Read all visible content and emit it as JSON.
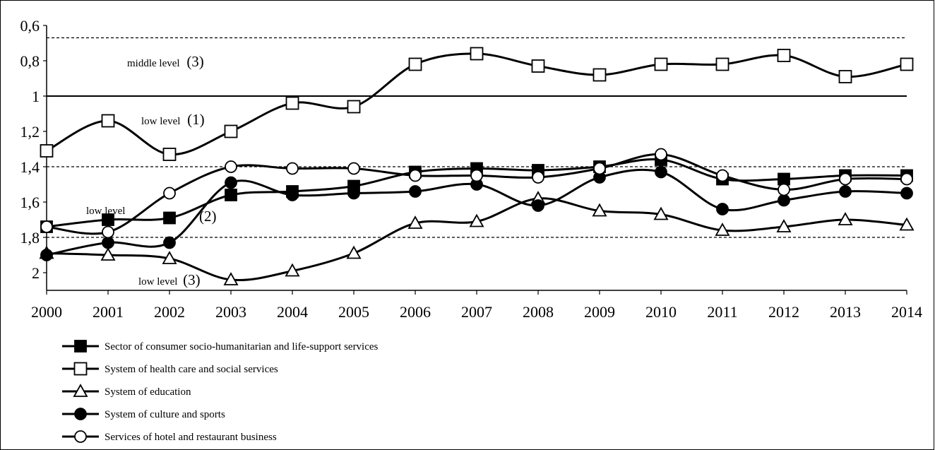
{
  "chart_data": {
    "type": "line",
    "title": "",
    "xlabel": "",
    "ylabel": "",
    "y_reversed": true,
    "ylim": [
      0.6,
      2.1
    ],
    "grid": false,
    "legend_position": "bottom-left",
    "x": [
      "2000",
      "2001",
      "2002",
      "2003",
      "2004",
      "2005",
      "2006",
      "2007",
      "2008",
      "2009",
      "2010",
      "2011",
      "2012",
      "2013",
      "2014"
    ],
    "y_ticks": [
      "0,6",
      "0,8",
      "1",
      "1,2",
      "1,4",
      "1,6",
      "1,8",
      "2"
    ],
    "y_tick_values": [
      0.6,
      0.8,
      1.0,
      1.2,
      1.4,
      1.6,
      1.8,
      2.0
    ],
    "reference_lines": [
      {
        "value": 0.67,
        "style": "dashed"
      },
      {
        "value": 1.0,
        "style": "solid"
      },
      {
        "value": 1.4,
        "style": "dashed"
      },
      {
        "value": 1.8,
        "style": "dashed"
      }
    ],
    "series": [
      {
        "name": "Sector of consumer socio-humanitarian and life-support services",
        "marker": "filled-square",
        "values": [
          1.74,
          1.7,
          1.69,
          1.56,
          1.54,
          1.51,
          1.43,
          1.41,
          1.42,
          1.4,
          1.36,
          1.47,
          1.47,
          1.45,
          1.45
        ]
      },
      {
        "name": "System of health care and social services",
        "marker": "open-square",
        "values": [
          1.31,
          1.14,
          1.33,
          1.2,
          1.04,
          1.06,
          0.82,
          0.76,
          0.83,
          0.88,
          0.82,
          0.82,
          0.77,
          0.89,
          0.82
        ]
      },
      {
        "name": "System of education",
        "marker": "open-triangle",
        "values": [
          1.89,
          1.9,
          1.92,
          2.04,
          1.99,
          1.89,
          1.72,
          1.71,
          1.58,
          1.65,
          1.67,
          1.76,
          1.74,
          1.7,
          1.73
        ]
      },
      {
        "name": "System of culture and sports",
        "marker": "filled-circle",
        "values": [
          1.9,
          1.83,
          1.83,
          1.49,
          1.56,
          1.55,
          1.54,
          1.5,
          1.62,
          1.46,
          1.43,
          1.64,
          1.59,
          1.54,
          1.55
        ]
      },
      {
        "name": "Services of hotel and restaurant business",
        "marker": "open-circle",
        "values": [
          1.74,
          1.77,
          1.55,
          1.4,
          1.41,
          1.41,
          1.45,
          1.45,
          1.46,
          1.41,
          1.33,
          1.45,
          1.53,
          1.47,
          1.47
        ]
      }
    ],
    "annotations": [
      {
        "text": "middle level",
        "num": "(3)"
      },
      {
        "text": "low level",
        "num": "(1)"
      },
      {
        "text": "low level",
        "num": ""
      },
      {
        "text": "",
        "num": "(2)"
      },
      {
        "text": "low level",
        "num": "(3)"
      }
    ]
  }
}
